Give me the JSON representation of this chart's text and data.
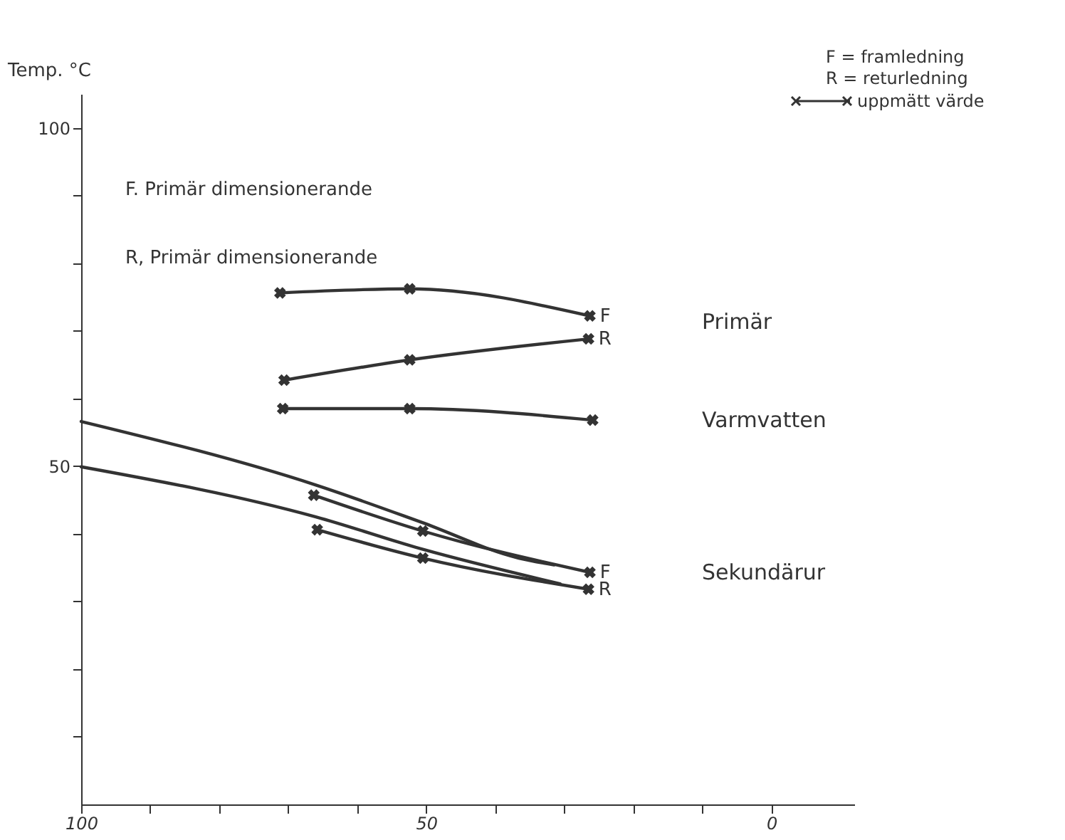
{
  "chart_data": {
    "type": "line",
    "ylabel": "Temp. °C",
    "xlim": [
      100,
      -12
    ],
    "ylim": [
      0,
      105
    ],
    "xticks": [
      100,
      {
        "value": 90,
        "label": null
      },
      {
        "value": 80,
        "label": null
      },
      {
        "value": 70,
        "label": null
      },
      {
        "value": 60,
        "label": null
      },
      50,
      {
        "value": 40,
        "label": null
      },
      {
        "value": 30,
        "label": null
      },
      {
        "value": 20,
        "label": null
      },
      {
        "value": 10,
        "label": null
      },
      0
    ],
    "yticks": [
      {
        "value": 10,
        "label": null
      },
      {
        "value": 20,
        "label": null
      },
      {
        "value": 30,
        "label": null
      },
      {
        "value": 40,
        "label": null
      },
      50,
      {
        "value": 60,
        "label": null
      },
      {
        "value": 70,
        "label": null
      },
      {
        "value": 80,
        "label": null
      },
      {
        "value": 90,
        "label": null
      },
      100
    ],
    "grid": false,
    "series": [
      {
        "name": "F",
        "color": "#333333",
        "marker": "cross",
        "x": [
          71.2,
          52.4,
          26.3
        ],
        "values": [
          75.6,
          76.2,
          72.2
        ]
      },
      {
        "name": "R",
        "color": "#333333",
        "marker": "cross",
        "x": [
          70.6,
          52.4,
          26.5
        ],
        "values": [
          62.7,
          65.7,
          68.8
        ]
      },
      {
        "color": "#333333",
        "marker": "cross",
        "x": [
          70.8,
          52.4,
          25.9
        ],
        "values": [
          58.5,
          58.5,
          56.8
        ]
      },
      {
        "name": "F",
        "color": "#333333",
        "marker": "cross",
        "x": [
          66.3,
          50.5,
          26.3
        ],
        "values": [
          45.7,
          40.4,
          34.3
        ]
      },
      {
        "name": "R",
        "color": "#333333",
        "marker": "cross",
        "x": [
          65.8,
          50.5,
          26.5
        ],
        "values": [
          40.6,
          36.4,
          31.8
        ]
      },
      {
        "color": "#333333",
        "marker": "none",
        "x": [
          100,
          66,
          50.7,
          36.6,
          31.5
        ],
        "values": [
          56.6,
          47.2,
          41.7,
          36.4,
          35.4
        ]
      },
      {
        "color": "#333333",
        "marker": "none",
        "x": [
          100,
          66,
          50.5,
          30.6
        ],
        "values": [
          49.9,
          42.5,
          37.7,
          32.6
        ]
      }
    ],
    "annotations": [
      "Primär",
      "Varmvatten",
      "Sekundärur",
      "F. Primär dimensionerande",
      "R, Primär dimensionerande",
      "F = framledning",
      "R = returledning",
      "uppmätt värde"
    ]
  }
}
